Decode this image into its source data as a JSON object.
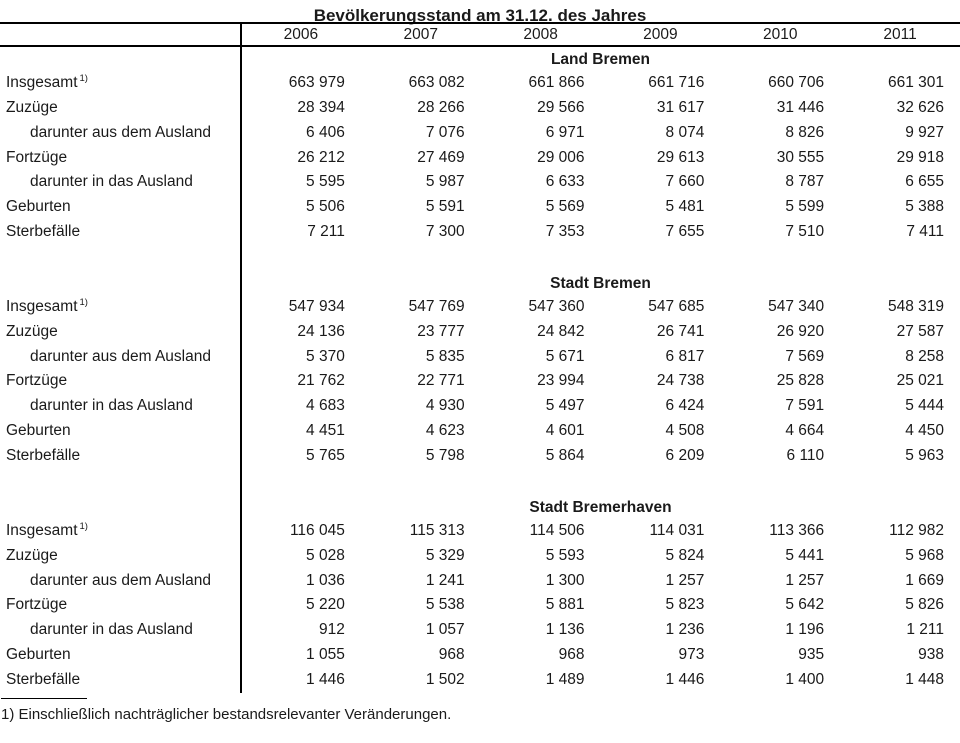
{
  "title": "Bevölkerungsstand am 31.12. des Jahres",
  "columns": [
    "2006",
    "2007",
    "2008",
    "2009",
    "2010",
    "2011"
  ],
  "sections": [
    {
      "name": "Land Bremen",
      "rows": [
        {
          "label": "Insgesamt",
          "sup": "1)",
          "indent": false,
          "values": [
            "663 979",
            "663 082",
            "661 866",
            "661 716",
            "660 706",
            "661 301"
          ]
        },
        {
          "label": "Zuzüge",
          "indent": false,
          "values": [
            "28 394",
            "28 266",
            "29 566",
            "31 617",
            "31 446",
            "32 626"
          ]
        },
        {
          "label": "darunter aus dem Ausland",
          "indent": true,
          "values": [
            "6 406",
            "7 076",
            "6 971",
            "8 074",
            "8 826",
            "9 927"
          ]
        },
        {
          "label": "Fortzüge",
          "indent": false,
          "values": [
            "26 212",
            "27 469",
            "29 006",
            "29 613",
            "30 555",
            "29 918"
          ]
        },
        {
          "label": "darunter in das Ausland",
          "indent": true,
          "values": [
            "5 595",
            "5 987",
            "6 633",
            "7 660",
            "8 787",
            "6 655"
          ]
        },
        {
          "label": "Geburten",
          "indent": false,
          "values": [
            "5 506",
            "5 591",
            "5 569",
            "5 481",
            "5 599",
            "5 388"
          ]
        },
        {
          "label": "Sterbefälle",
          "indent": false,
          "values": [
            "7 211",
            "7 300",
            "7 353",
            "7 655",
            "7 510",
            "7 411"
          ]
        }
      ]
    },
    {
      "name": "Stadt Bremen",
      "rows": [
        {
          "label": "Insgesamt",
          "sup": "1)",
          "indent": false,
          "values": [
            "547 934",
            "547 769",
            "547 360",
            "547 685",
            "547 340",
            "548 319"
          ]
        },
        {
          "label": "Zuzüge",
          "indent": false,
          "values": [
            "24 136",
            "23 777",
            "24 842",
            "26 741",
            "26 920",
            "27 587"
          ]
        },
        {
          "label": "darunter aus dem Ausland",
          "indent": true,
          "values": [
            "5 370",
            "5 835",
            "5 671",
            "6 817",
            "7 569",
            "8 258"
          ]
        },
        {
          "label": "Fortzüge",
          "indent": false,
          "values": [
            "21 762",
            "22 771",
            "23 994",
            "24 738",
            "25 828",
            "25 021"
          ]
        },
        {
          "label": "darunter in das Ausland",
          "indent": true,
          "values": [
            "4 683",
            "4 930",
            "5 497",
            "6 424",
            "7 591",
            "5 444"
          ]
        },
        {
          "label": "Geburten",
          "indent": false,
          "values": [
            "4 451",
            "4 623",
            "4 601",
            "4 508",
            "4 664",
            "4 450"
          ]
        },
        {
          "label": "Sterbefälle",
          "indent": false,
          "values": [
            "5 765",
            "5 798",
            "5 864",
            "6 209",
            "6 110",
            "5 963"
          ]
        }
      ]
    },
    {
      "name": "Stadt Bremerhaven",
      "rows": [
        {
          "label": "Insgesamt",
          "sup": "1)",
          "indent": false,
          "values": [
            "116 045",
            "115 313",
            "114 506",
            "114 031",
            "113 366",
            "112 982"
          ]
        },
        {
          "label": "Zuzüge",
          "indent": false,
          "values": [
            "5 028",
            "5 329",
            "5 593",
            "5 824",
            "5 441",
            "5 968"
          ]
        },
        {
          "label": "darunter aus dem Ausland",
          "indent": true,
          "values": [
            "1 036",
            "1 241",
            "1 300",
            "1 257",
            "1 257",
            "1 669"
          ]
        },
        {
          "label": "Fortzüge",
          "indent": false,
          "values": [
            "5 220",
            "5 538",
            "5 881",
            "5 823",
            "5 642",
            "5 826"
          ]
        },
        {
          "label": "darunter in das Ausland",
          "indent": true,
          "values": [
            "912",
            "1 057",
            "1 136",
            "1 236",
            "1 196",
            "1 211"
          ]
        },
        {
          "label": "Geburten",
          "indent": false,
          "values": [
            "1 055",
            "968",
            "968",
            "973",
            "935",
            "938"
          ]
        },
        {
          "label": "Sterbefälle",
          "indent": false,
          "values": [
            "1 446",
            "1 502",
            "1 489",
            "1 446",
            "1 400",
            "1 448"
          ]
        }
      ]
    }
  ],
  "footnote": "1) Einschließlich nachträglicher bestandsrelevanter Veränderungen.",
  "colors": {
    "text": "#1a1a1a",
    "rule": "#000000",
    "background": "#ffffff"
  }
}
